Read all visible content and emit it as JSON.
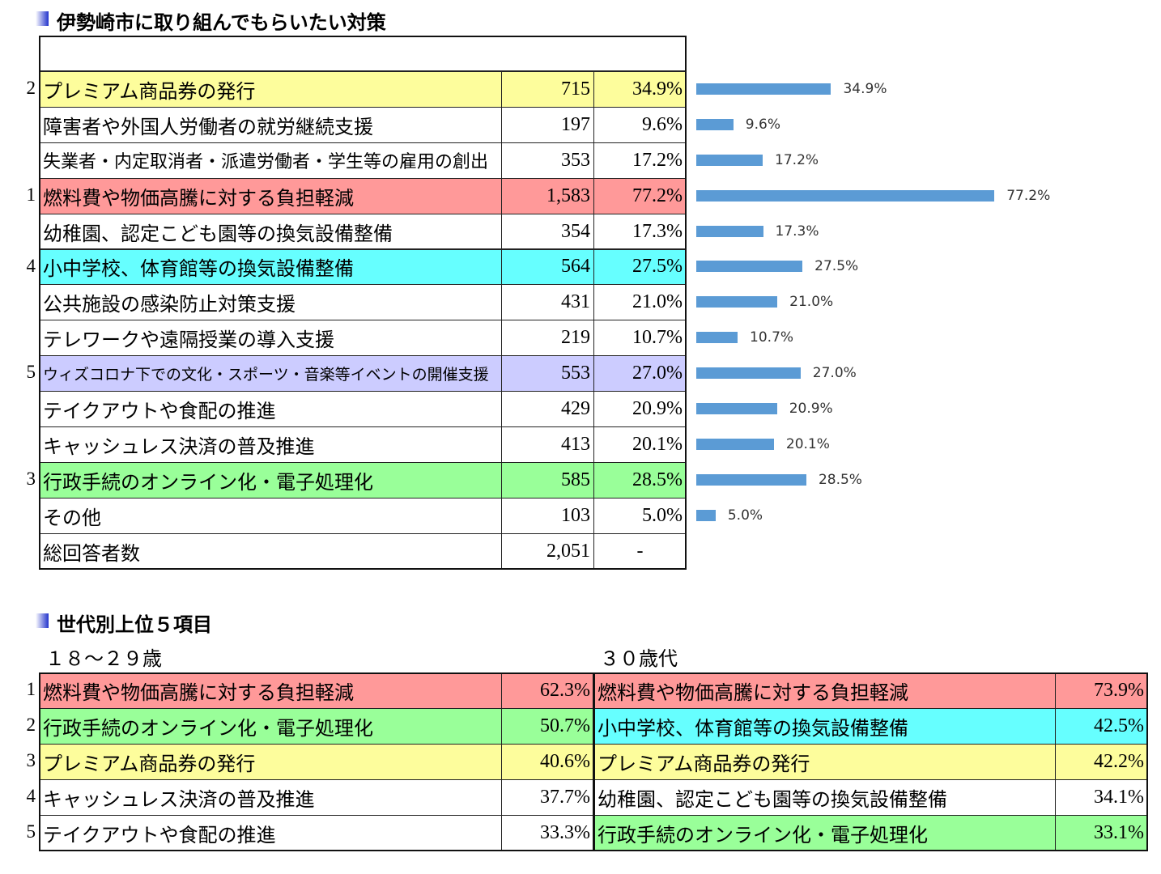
{
  "header": {
    "title": "伊勢崎市に取り組んでもらいたい対策"
  },
  "table": {
    "rows": [
      {
        "rank": "2",
        "label": "プレミアム商品券の発行",
        "count": "715",
        "percent": "34.9%",
        "color": "#fdfd9c"
      },
      {
        "label": "障害者や外国人労働者の就労継続支援",
        "count": "197",
        "percent": "9.6%"
      },
      {
        "label": "失業者・内定取消者・派遣労働者・学生等の雇用の創出",
        "count": "353",
        "percent": "17.2%"
      },
      {
        "rank": "1",
        "label": "燃料費や物価高騰に対する負担軽減",
        "count": "1,583",
        "percent": "77.2%",
        "color": "#ff9999"
      },
      {
        "label": "幼稚園、認定こども園等の換気設備整備",
        "count": "354",
        "percent": "17.3%"
      },
      {
        "rank": "4",
        "label": "小中学校、体育館等の換気設備整備",
        "count": "564",
        "percent": "27.5%",
        "color": "#66ffff"
      },
      {
        "label": "公共施設の感染防止対策支援",
        "count": "431",
        "percent": "21.0%"
      },
      {
        "label": "テレワークや遠隔授業の導入支援",
        "count": "219",
        "percent": "10.7%"
      },
      {
        "rank": "5",
        "label": "ウィズコロナ下での文化・スポーツ・音楽等イベントの開催支援",
        "count": "553",
        "percent": "27.0%",
        "color": "#ccccff"
      },
      {
        "label": "テイクアウトや食配の推進",
        "count": "429",
        "percent": "20.9%"
      },
      {
        "label": "キャッシュレス決済の普及推進",
        "count": "413",
        "percent": "20.1%"
      },
      {
        "rank": "3",
        "label": "行政手続のオンライン化・電子処理化",
        "count": "585",
        "percent": "28.5%",
        "color": "#99ff99"
      },
      {
        "label": "その他",
        "count": "103",
        "percent": "5.0%"
      }
    ],
    "total": {
      "label": "総回答者数",
      "count": "2,051",
      "percent": "-"
    }
  },
  "chart_data": {
    "type": "bar",
    "orientation": "horizontal",
    "color": "#5b9bd5",
    "values": [
      34.9,
      9.6,
      17.2,
      77.2,
      17.3,
      27.5,
      21.0,
      10.7,
      27.0,
      20.9,
      20.1,
      28.5,
      5.0
    ],
    "value_labels": [
      "34.9%",
      "9.6%",
      "17.2%",
      "77.2%",
      "17.3%",
      "27.5%",
      "21.0%",
      "10.7%",
      "27.0%",
      "20.9%",
      "20.1%",
      "28.5%",
      "5.0%"
    ]
  },
  "generations": {
    "title": "世代別上位５項目",
    "groups": [
      {
        "name": "１８～２９歳",
        "rows": [
          {
            "rank": "1",
            "label": "燃料費や物価高騰に対する負担軽減",
            "percent": "62.3%",
            "color": "#ff9999"
          },
          {
            "rank": "2",
            "label": "行政手続のオンライン化・電子処理化",
            "percent": "50.7%",
            "color": "#99ff99"
          },
          {
            "rank": "3",
            "label": "プレミアム商品券の発行",
            "percent": "40.6%",
            "color": "#fdfd9c"
          },
          {
            "rank": "4",
            "label": "キャッシュレス決済の普及推進",
            "percent": "37.7%"
          },
          {
            "rank": "5",
            "label": "テイクアウトや食配の推進",
            "percent": "33.3%"
          }
        ]
      },
      {
        "name": "３０歳代",
        "rows": [
          {
            "label": "燃料費や物価高騰に対する負担軽減",
            "percent": "73.9%",
            "color": "#ff9999"
          },
          {
            "label": "小中学校、体育館等の換気設備整備",
            "percent": "42.5%",
            "color": "#66ffff"
          },
          {
            "label": "プレミアム商品券の発行",
            "percent": "42.2%",
            "color": "#fdfd9c"
          },
          {
            "label": "幼稚園、認定こども園等の換気設備整備",
            "percent": "34.1%"
          },
          {
            "label": "行政手続のオンライン化・電子処理化",
            "percent": "33.1%",
            "color": "#99ff99"
          }
        ]
      }
    ]
  }
}
